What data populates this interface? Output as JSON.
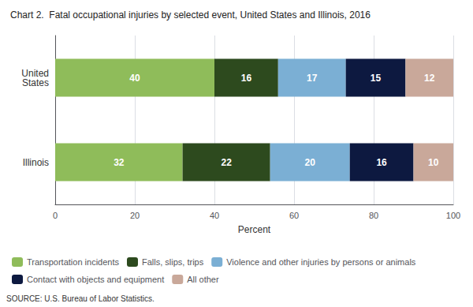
{
  "chart_data": {
    "type": "bar",
    "orientation": "horizontal",
    "stacked": true,
    "title": "Chart 2.  Fatal occupational injuries by selected event, United States and Illinois, 2016",
    "categories": [
      "United\nStates",
      "Illinois"
    ],
    "series": [
      {
        "name": "Transportation incidents",
        "color": "#8fbc5a",
        "values": [
          40,
          32
        ]
      },
      {
        "name": "Falls, slips, trips",
        "color": "#2d4a1e",
        "values": [
          16,
          22
        ]
      },
      {
        "name": "Violence and other injuries by persons or animals",
        "color": "#7bafd4",
        "values": [
          17,
          20
        ]
      },
      {
        "name": "Contact with objects and equipment",
        "color": "#0d1940",
        "values": [
          15,
          16
        ]
      },
      {
        "name": "All other",
        "color": "#c9a89a",
        "values": [
          12,
          10
        ]
      }
    ],
    "xlabel": "Percent",
    "xlim": [
      0,
      100
    ],
    "xticks": [
      0,
      20,
      40,
      60,
      80,
      100
    ],
    "grid": true,
    "legend": "bottom",
    "data_labels": true,
    "annotations": [
      "SOURCE: U.S. Bureau of Labor Statistics."
    ]
  }
}
